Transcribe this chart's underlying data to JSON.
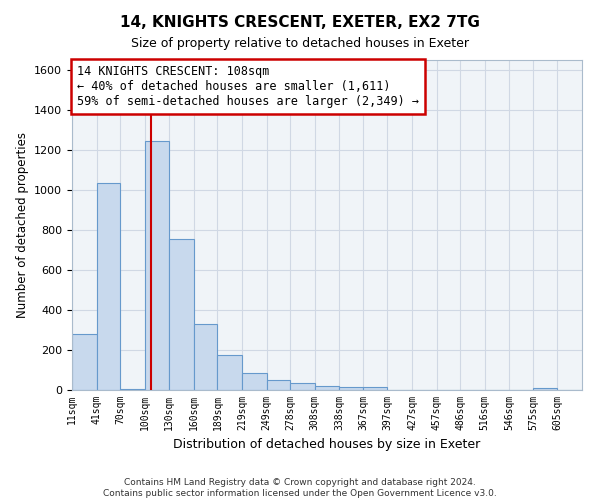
{
  "title1": "14, KNIGHTS CRESCENT, EXETER, EX2 7TG",
  "title2": "Size of property relative to detached houses in Exeter",
  "xlabel": "Distribution of detached houses by size in Exeter",
  "ylabel": "Number of detached properties",
  "bin_labels": [
    "11sqm",
    "41sqm",
    "70sqm",
    "100sqm",
    "130sqm",
    "160sqm",
    "189sqm",
    "219sqm",
    "249sqm",
    "278sqm",
    "308sqm",
    "338sqm",
    "367sqm",
    "397sqm",
    "427sqm",
    "457sqm",
    "486sqm",
    "516sqm",
    "546sqm",
    "575sqm",
    "605sqm"
  ],
  "bin_edges": [
    11,
    41,
    70,
    100,
    130,
    160,
    189,
    219,
    249,
    278,
    308,
    338,
    367,
    397,
    427,
    457,
    486,
    516,
    546,
    575,
    605
  ],
  "bar_heights": [
    280,
    1035,
    5,
    1245,
    755,
    330,
    175,
    85,
    50,
    35,
    20,
    15,
    15,
    0,
    0,
    0,
    0,
    0,
    0,
    10,
    0
  ],
  "bar_color": "#c8d9ed",
  "bar_edge_color": "#6699cc",
  "property_value": 108,
  "vline_color": "#cc0000",
  "annotation_line1": "14 KNIGHTS CRESCENT: 108sqm",
  "annotation_line2": "← 40% of detached houses are smaller (1,611)",
  "annotation_line3": "59% of semi-detached houses are larger (2,349) →",
  "annotation_box_color": "#ffffff",
  "annotation_box_edge": "#cc0000",
  "ylim": [
    0,
    1650
  ],
  "yticks": [
    0,
    200,
    400,
    600,
    800,
    1000,
    1200,
    1400,
    1600
  ],
  "footer1": "Contains HM Land Registry data © Crown copyright and database right 2024.",
  "footer2": "Contains public sector information licensed under the Open Government Licence v3.0.",
  "background_color": "#ffffff",
  "plot_bg_color": "#f0f4f8",
  "grid_color": "#d0d8e4"
}
